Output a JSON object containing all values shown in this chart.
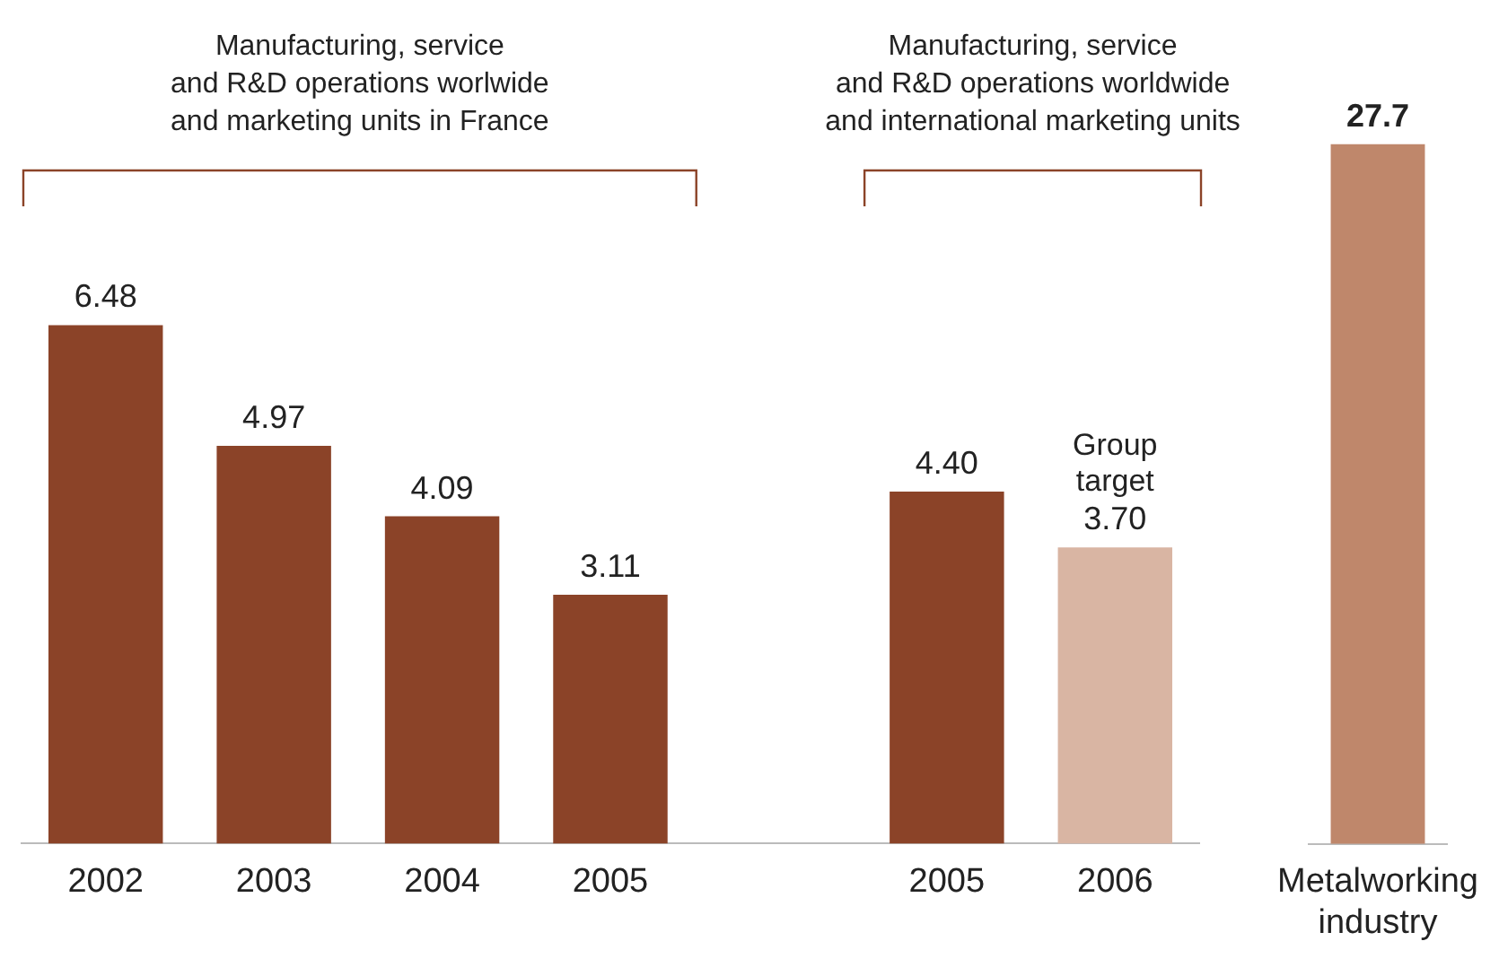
{
  "chart_data": [
    {
      "type": "bar",
      "categories": [
        "2002",
        "2003",
        "2004",
        "2005",
        null,
        "2005",
        "2006"
      ],
      "values": [
        6.48,
        4.97,
        4.09,
        3.11,
        null,
        4.4,
        3.7
      ],
      "colors": [
        "#8b4328",
        "#8b4328",
        "#8b4328",
        "#8b4328",
        "#8b4328",
        "#8b4328",
        "#d9b5a3"
      ],
      "value_labels": [
        "6.48",
        "4.97",
        "4.09",
        "3.11",
        null,
        "4.40",
        "3.70"
      ],
      "tick_labels": "x",
      "annotations": [
        "Manufacturing, service\nand R&D operations worlwide\nand marketing units in France",
        "Manufacturing, service\nand R&D operations worldwide\nand international marketing units",
        {
          "text": "Group target",
          "x": "2006",
          "y": 3.7
        }
      ]
    },
    {
      "type": "bar",
      "categories": [
        "Metalworking industry"
      ],
      "values": [
        27.7
      ],
      "colors": [
        "#bf876b"
      ],
      "value_labels": [
        "27.7"
      ],
      "tick_labels": "x"
    }
  ]
}
